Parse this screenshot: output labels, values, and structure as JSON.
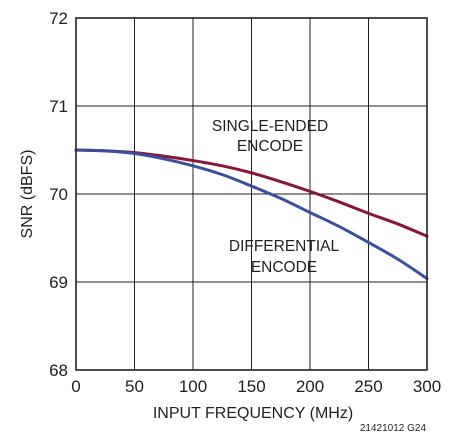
{
  "chart_data": {
    "type": "line",
    "xlabel": "INPUT FREQUENCY (MHz)",
    "ylabel": "SNR (dBFS)",
    "xlim": [
      0,
      300
    ],
    "ylim": [
      68,
      72
    ],
    "xticks": [
      0,
      50,
      100,
      150,
      200,
      250,
      300
    ],
    "yticks": [
      68,
      69,
      70,
      71,
      72
    ],
    "grid": true,
    "series": [
      {
        "name": "SINGLE-ENDED ENCODE",
        "label_lines": [
          "SINGLE-ENDED",
          "ENCODE"
        ],
        "color": "#8b1538",
        "x": [
          0,
          25,
          50,
          75,
          100,
          125,
          150,
          175,
          200,
          225,
          250,
          275,
          300
        ],
        "y": [
          70.5,
          70.49,
          70.47,
          70.43,
          70.38,
          70.32,
          70.24,
          70.14,
          70.03,
          69.91,
          69.78,
          69.66,
          69.52
        ]
      },
      {
        "name": "DIFFERENTIAL ENCODE",
        "label_lines": [
          "DIFFERENTIAL",
          "ENCODE"
        ],
        "color": "#3a4fa0",
        "x": [
          0,
          25,
          50,
          75,
          100,
          125,
          150,
          175,
          200,
          225,
          250,
          275,
          300
        ],
        "y": [
          70.5,
          70.49,
          70.46,
          70.4,
          70.32,
          70.22,
          70.09,
          69.95,
          69.79,
          69.63,
          69.45,
          69.26,
          69.04
        ]
      }
    ]
  },
  "figure_id": "21421012 G24"
}
